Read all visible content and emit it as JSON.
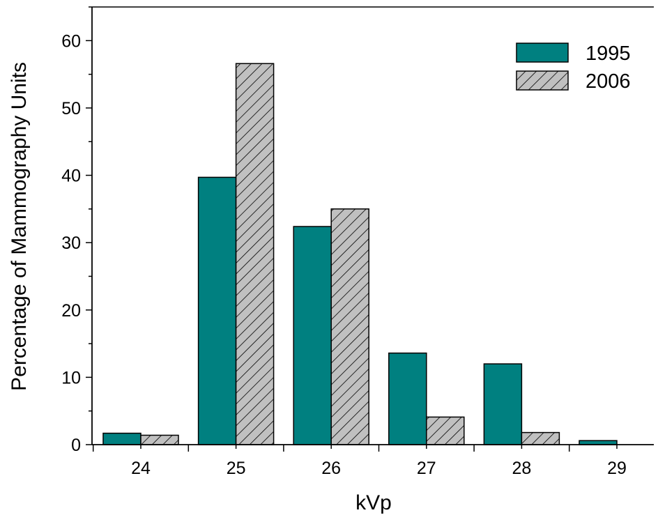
{
  "chart_data": {
    "type": "bar",
    "title": "",
    "xlabel": "kVp",
    "ylabel": "Percentage of Mammography Units",
    "categories": [
      "24",
      "25",
      "26",
      "27",
      "28",
      "29"
    ],
    "series": [
      {
        "name": "1995",
        "values": [
          1.7,
          39.7,
          32.4,
          13.6,
          12.0,
          0.6
        ],
        "color": "#008080",
        "pattern": "solid"
      },
      {
        "name": "2006",
        "values": [
          1.4,
          56.6,
          35.0,
          4.1,
          1.8,
          0.0
        ],
        "color": "#c0c0c0",
        "pattern": "hatched"
      }
    ],
    "ylim": [
      0,
      65
    ],
    "yticks": [
      "0",
      "10",
      "20",
      "30",
      "40",
      "50",
      "60"
    ],
    "grid": false,
    "legend_position": "top-right"
  }
}
